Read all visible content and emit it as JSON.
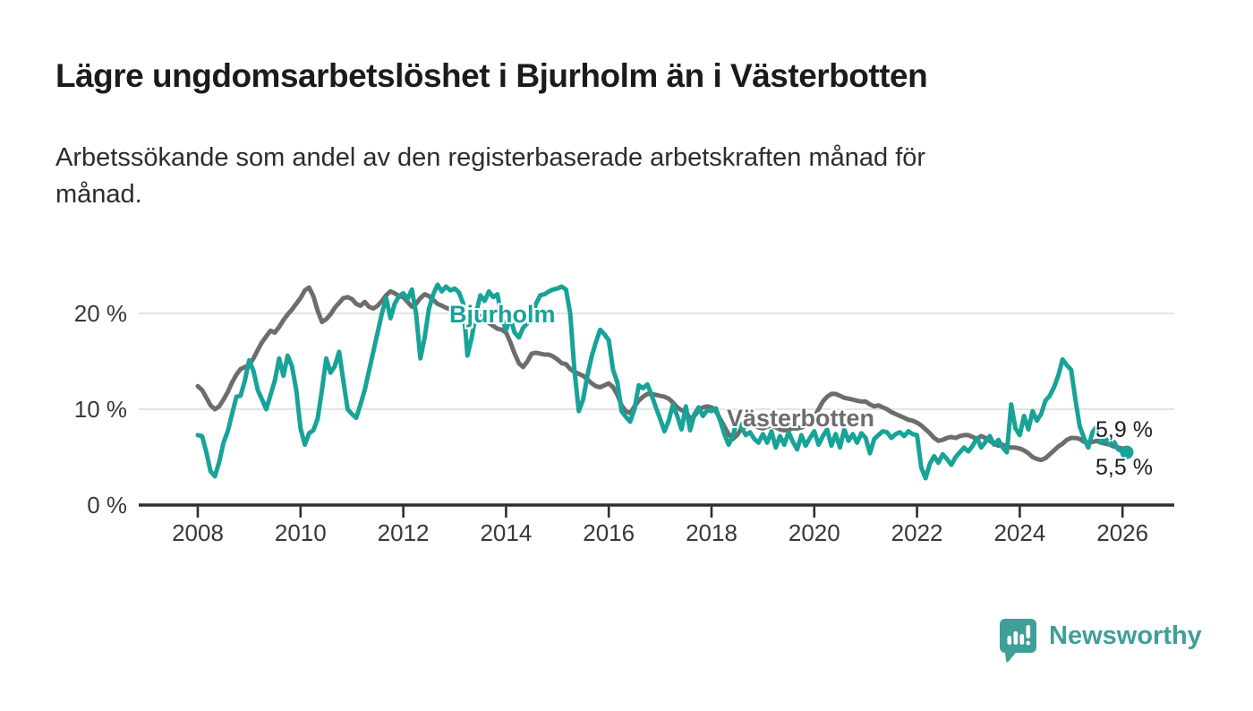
{
  "title": "Lägre ungdomsarbetslöshet i Bjurholm än i Västerbotten",
  "subtitle": "Arbetssökande som andel av den registerbaserade arbetskraften månad för\nmånad.",
  "branding": {
    "name": "Newsworthy",
    "color": "#3f9f99",
    "logo_icon": "speech-bubble-bar-chart"
  },
  "colors": {
    "bjurholm_line": "#17a398",
    "vasterbotten_line": "#6d6d6d",
    "gridline": "#dadada",
    "axis": "#2e2e2e",
    "title_text": "#1b1b1b",
    "axis_text": "#383838"
  },
  "chart_data": {
    "type": "line",
    "title": "Lägre ungdomsarbetslöshet i Bjurholm än i Västerbotten",
    "subtitle": "Arbetssökande som andel av den registerbaserade arbetskraften månad för månad.",
    "unit": "%",
    "grid": "horizontal",
    "legend_position": "inline-labels",
    "x_axis": {
      "ticks": [
        2008,
        2010,
        2012,
        2014,
        2016,
        2018,
        2020,
        2022,
        2024,
        2026
      ],
      "range_years": [
        2008,
        2026.1
      ]
    },
    "y_axis": {
      "ticks": [
        {
          "value": 0,
          "label": "0 %"
        },
        {
          "value": 10,
          "label": "10 %"
        },
        {
          "value": 20,
          "label": "20 %"
        }
      ],
      "range": [
        0,
        24
      ]
    },
    "frequency": "monthly",
    "start_year": 2008,
    "points_per_year": 12,
    "series": [
      {
        "name": "Västerbotten",
        "color": "#6d6d6d",
        "end_label": "5,9 %",
        "end_value": 5.9,
        "values": [
          12.4,
          12.0,
          11.2,
          10.4,
          10.0,
          10.3,
          11.0,
          11.8,
          12.8,
          13.6,
          14.2,
          14.4,
          14.6,
          15.3,
          16.2,
          17.0,
          17.6,
          18.2,
          18.0,
          18.6,
          19.3,
          19.9,
          20.4,
          21.0,
          21.6,
          22.4,
          22.7,
          21.8,
          20.3,
          19.1,
          19.4,
          19.9,
          20.6,
          21.1,
          21.6,
          21.7,
          21.5,
          21.0,
          20.8,
          21.2,
          20.7,
          20.5,
          20.8,
          21.3,
          21.9,
          22.3,
          22.1,
          21.8,
          21.7,
          21.2,
          20.7,
          21.0,
          21.6,
          22.0,
          21.8,
          21.4,
          21.0,
          20.8,
          20.6,
          20.4,
          20.3,
          20.1,
          19.8,
          19.6,
          19.4,
          19.6,
          19.7,
          19.4,
          19.0,
          18.7,
          18.4,
          18.3,
          18.0,
          17.0,
          15.8,
          14.8,
          14.4,
          15.0,
          15.8,
          15.9,
          15.8,
          15.7,
          15.7,
          15.5,
          15.2,
          14.8,
          14.7,
          14.2,
          13.9,
          13.7,
          13.5,
          13.1,
          12.7,
          12.4,
          12.3,
          12.5,
          12.7,
          12.3,
          11.5,
          10.4,
          9.8,
          9.6,
          10.3,
          10.9,
          11.3,
          11.6,
          11.6,
          11.5,
          11.4,
          11.3,
          11.1,
          10.7,
          10.2,
          9.9,
          9.8,
          9.0,
          9.3,
          9.9,
          10.2,
          10.3,
          10.2,
          9.8,
          9.0,
          8.2,
          7.4,
          6.9,
          7.3,
          8.0,
          8.2,
          8.4,
          8.3,
          8.1,
          8.0,
          8.2,
          8.3,
          8.1,
          7.9,
          7.8,
          7.9,
          8.0,
          8.0,
          8.1,
          8.3,
          8.6,
          9.2,
          10.0,
          10.8,
          11.3,
          11.6,
          11.6,
          11.4,
          11.2,
          11.1,
          11.0,
          10.9,
          10.8,
          10.8,
          10.5,
          10.3,
          10.4,
          10.2,
          10.0,
          9.7,
          9.5,
          9.3,
          9.1,
          8.9,
          8.8,
          8.6,
          8.3,
          7.9,
          7.5,
          7.0,
          6.7,
          6.8,
          7.0,
          7.1,
          7.0,
          7.2,
          7.3,
          7.3,
          7.1,
          6.9,
          7.2,
          7.0,
          6.7,
          6.4,
          6.2,
          6.3,
          6.1,
          6.0,
          6.0,
          5.9,
          5.7,
          5.4,
          5.0,
          4.8,
          4.7,
          4.9,
          5.3,
          5.7,
          6.1,
          6.4,
          6.8,
          7.0,
          7.0,
          6.9,
          6.6,
          6.5,
          6.6,
          6.7,
          6.5,
          6.4,
          6.3,
          6.1,
          6.0,
          5.9,
          5.9
        ]
      },
      {
        "name": "Bjurholm",
        "color": "#17a398",
        "end_label": "5,5 %",
        "end_value": 5.5,
        "end_dot": true,
        "values": [
          7.3,
          7.2,
          5.5,
          3.5,
          3.0,
          4.5,
          6.5,
          7.7,
          9.5,
          11.3,
          11.4,
          13.0,
          15.1,
          14.0,
          12.0,
          11.0,
          10.0,
          11.5,
          13.0,
          15.3,
          13.5,
          15.6,
          14.5,
          12.0,
          8.0,
          6.3,
          7.5,
          7.8,
          9.0,
          12.0,
          15.3,
          13.8,
          14.5,
          16.0,
          13.0,
          10.0,
          9.5,
          9.1,
          10.5,
          12.0,
          14.0,
          16.0,
          18.0,
          20.0,
          21.6,
          19.5,
          21.0,
          21.8,
          22.1,
          21.5,
          22.5,
          20.0,
          15.3,
          17.5,
          20.5,
          22.0,
          23.0,
          22.3,
          22.8,
          22.4,
          22.6,
          22.2,
          21.0,
          15.6,
          17.5,
          20.0,
          21.9,
          21.3,
          22.3,
          21.7,
          22.0,
          19.5,
          18.3,
          19.5,
          18.0,
          17.5,
          18.5,
          19.0,
          19.8,
          21.0,
          21.9,
          22.0,
          22.3,
          22.5,
          22.6,
          22.8,
          22.5,
          20.0,
          14.0,
          9.8,
          11.0,
          13.5,
          15.5,
          17.0,
          18.3,
          17.8,
          17.2,
          14.1,
          12.8,
          9.8,
          9.2,
          8.7,
          10.0,
          12.5,
          12.2,
          12.6,
          11.5,
          10.2,
          9.0,
          7.7,
          8.8,
          10.5,
          9.3,
          7.9,
          10.3,
          7.8,
          9.5,
          10.2,
          9.3,
          9.9,
          9.8,
          10.1,
          8.8,
          7.4,
          6.3,
          7.2,
          9.0,
          8.1,
          7.3,
          7.6,
          6.9,
          6.5,
          7.4,
          6.5,
          7.7,
          6.0,
          7.2,
          6.3,
          7.6,
          6.6,
          5.8,
          7.3,
          6.2,
          7.0,
          7.7,
          6.3,
          7.2,
          7.9,
          6.2,
          7.4,
          6.0,
          7.9,
          6.7,
          7.4,
          6.5,
          7.5,
          7.0,
          5.4,
          6.9,
          7.3,
          7.7,
          7.6,
          7.0,
          7.4,
          7.6,
          7.2,
          7.7,
          7.4,
          7.3,
          3.9,
          2.8,
          4.3,
          5.1,
          4.4,
          5.3,
          4.8,
          4.2,
          5.0,
          5.5,
          6.0,
          5.6,
          6.2,
          7.0,
          6.0,
          6.6,
          7.2,
          6.3,
          6.8,
          6.0,
          5.5,
          10.5,
          8.0,
          7.3,
          9.3,
          7.9,
          9.8,
          8.8,
          9.5,
          10.9,
          11.4,
          12.3,
          13.5,
          15.2,
          14.6,
          14.1,
          11.0,
          8.2,
          7.0,
          6.0,
          7.6,
          8.2,
          6.5,
          7.0,
          6.3,
          6.6,
          5.8,
          5.6,
          5.5
        ]
      }
    ]
  }
}
